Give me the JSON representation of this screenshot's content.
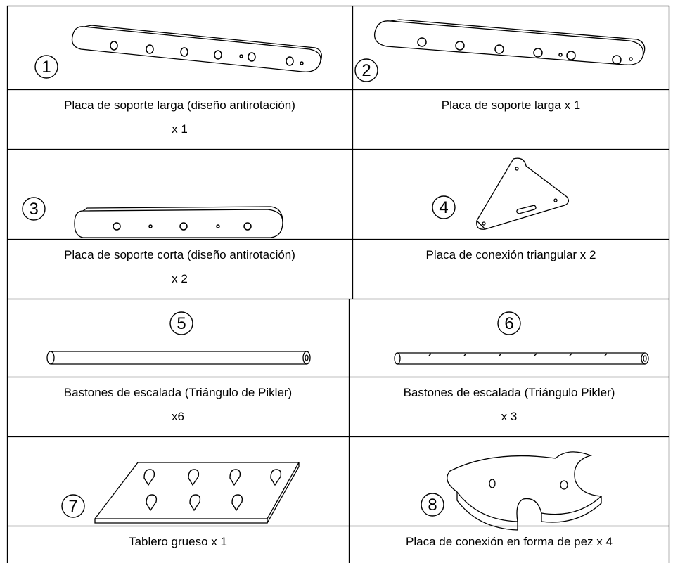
{
  "table": {
    "items": [
      {
        "number": "1",
        "caption": [
          "Placa de soporte larga (diseño antirotación)",
          "x 1"
        ]
      },
      {
        "number": "2",
        "caption": [
          "Placa de soporte larga x 1"
        ]
      },
      {
        "number": "3",
        "caption": [
          "Placa de soporte corta (diseño antirotación)",
          "x 2"
        ]
      },
      {
        "number": "4",
        "caption": [
          "Placa de conexión triangular x 2"
        ]
      },
      {
        "number": "5",
        "caption": [
          "Bastones de escalada (Triángulo de Pikler)",
          "x6"
        ]
      },
      {
        "number": "6",
        "caption": [
          "Bastones de escalada (Triángulo Pikler)",
          "x 3"
        ]
      },
      {
        "number": "7",
        "caption": [
          "Tablero grueso x 1"
        ]
      },
      {
        "number": "8",
        "caption": [
          "Placa de conexión en forma de pez x 4"
        ]
      }
    ]
  }
}
